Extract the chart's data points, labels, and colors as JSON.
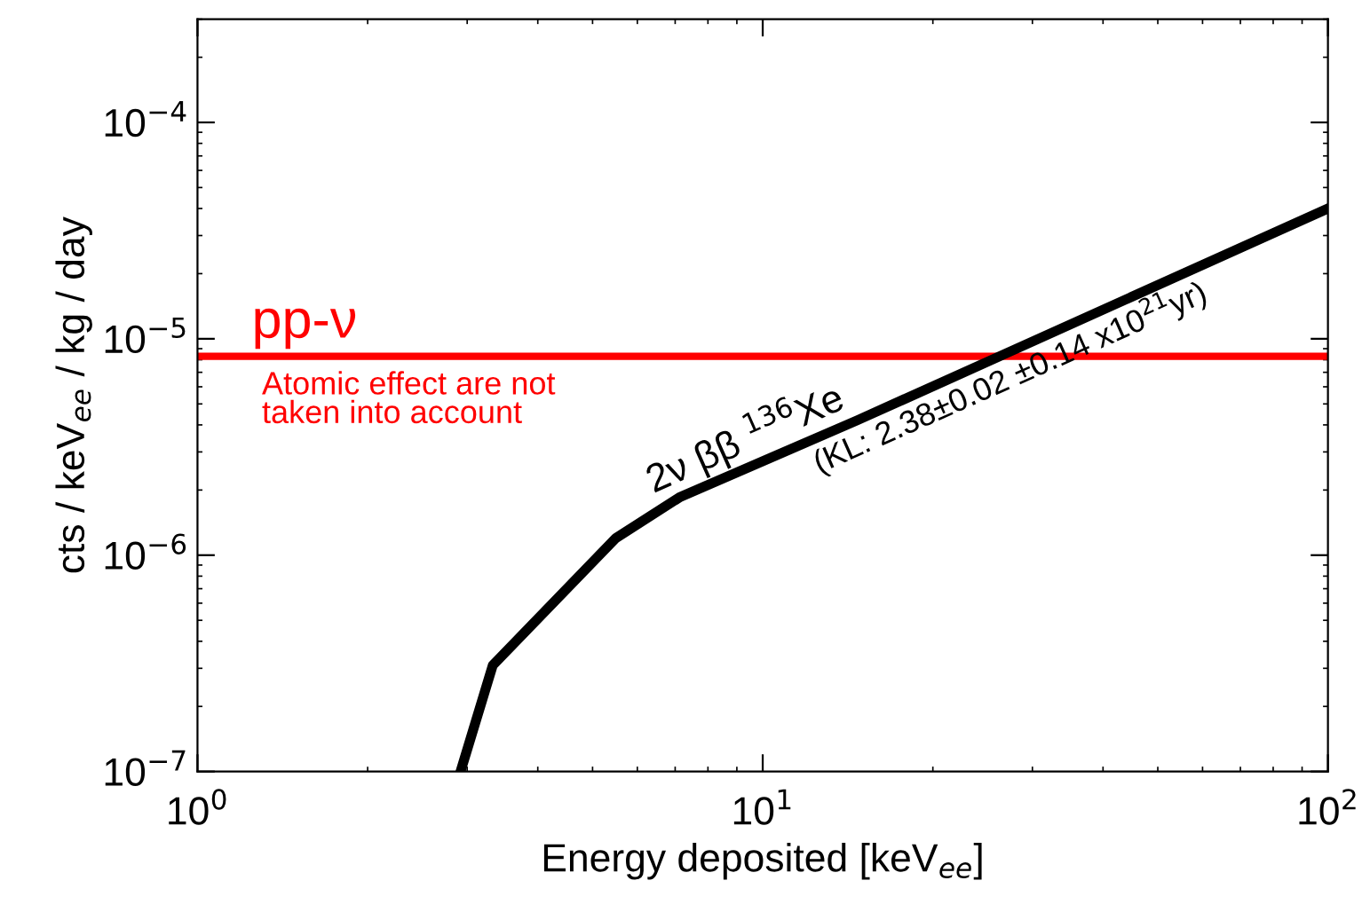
{
  "chart_data": {
    "type": "line",
    "log": "xy",
    "xlabel": "Energy deposited [keV$_{ee}$]",
    "ylabel": "cts / keV$_{ee}$ / kg / day",
    "x": [
      2.92,
      3.33,
      5.5,
      7.15,
      14.7,
      25.7,
      100
    ],
    "series": [
      {
        "color": "#000000",
        "values": [
          1e-07,
          3.1e-07,
          1.2e-06,
          1.86e-06,
          4.2e-06,
          8.1e-06,
          4e-05
        ]
      }
    ],
    "xlim": [
      1,
      100
    ],
    "ylim": [
      1e-07,
      0.0003
    ],
    "xticks": [
      {
        "value": 1,
        "label": "10$^{0}$"
      },
      {
        "value": 10,
        "label": "10$^{1}$"
      },
      {
        "value": 100,
        "label": "10$^{2}$"
      }
    ],
    "yticks": [
      {
        "value": 1e-07,
        "label": "10$^{−7}$"
      },
      {
        "value": 1e-06,
        "label": "10$^{−6}$"
      },
      {
        "value": 1e-05,
        "label": "10$^{−5}$"
      },
      {
        "value": 0.0001,
        "label": "10$^{−4}$"
      }
    ],
    "ref_lines": [
      {
        "axis": "y",
        "value": 8.3e-06,
        "label": "pp-ν",
        "color": "#ff0000"
      }
    ],
    "annotations": [
      {
        "text": "Atomic effect are not\ntaken into account",
        "x": 1.3,
        "y": 8.3e-06
      },
      {
        "text": "2ν ββ $^{136}$Xe",
        "x": 6.5,
        "y": 1.6e-06
      },
      {
        "text": "(KL: 2.38±0.02 ±0.14 x10$^{21}$yr)",
        "x": 12,
        "y": 3.5e-06
      }
    ],
    "grid": false,
    "legend": false
  }
}
